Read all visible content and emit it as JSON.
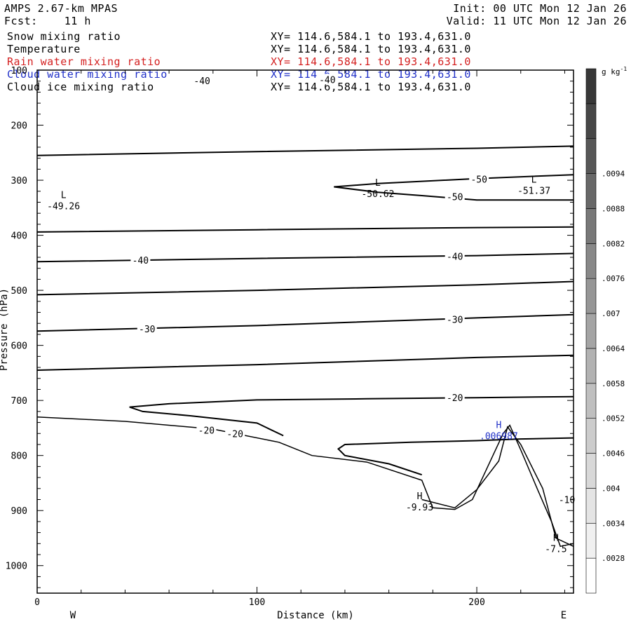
{
  "header": {
    "model": "AMPS 2.67-km MPAS",
    "fcst": "Fcst:    11 h",
    "init": "Init: 00 UTC Mon 12 Jan 26",
    "valid": "Valid: 11 UTC Mon 12 Jan 26"
  },
  "fields": [
    {
      "name": "Snow mixing ratio",
      "xy": "XY= 114.6,584.1 to 193.4,631.0",
      "color": "#000000"
    },
    {
      "name": "Temperature",
      "xy": "XY= 114.6,584.1 to 193.4,631.0",
      "color": "#000000"
    },
    {
      "name": "Rain water mixing ratio",
      "xy": "XY= 114.6,584.1 to 193.4,631.0",
      "color": "#d42020"
    },
    {
      "name": "Cloud water mixing ratio",
      "xy": "XY= 114.6,584.1 to 193.4,631.0",
      "color": "#2030c8"
    },
    {
      "name": "Cloud ice mixing ratio",
      "xy": "XY= 114.6,584.1 to 193.4,631.0",
      "color": "#000000"
    }
  ],
  "chart_data": {
    "type": "line",
    "title": "",
    "xlabel": "Distance (km)",
    "ylabel": "Pressure (hPa)",
    "xlim": [
      0,
      244
    ],
    "ylim": [
      1050,
      100
    ],
    "x_ticks": [
      0,
      100,
      200
    ],
    "y_ticks": [
      100,
      200,
      300,
      400,
      500,
      600,
      700,
      800,
      900,
      1000
    ],
    "x_end_labels": {
      "left": "W",
      "right": "E"
    },
    "colorbar": {
      "unit": "g kg",
      "unit_sup": "-1",
      "ticks": [
        ".0028",
        ".0034",
        ".004",
        ".0046",
        ".0052",
        ".0058",
        ".0064",
        ".007",
        ".0076",
        ".0082",
        ".0088",
        ".0094"
      ],
      "shades": [
        "#ffffff",
        "#f0f0f0",
        "#e4e4e4",
        "#d8d8d8",
        "#cccccc",
        "#bfbfbf",
        "#b2b2b2",
        "#a4a4a4",
        "#969696",
        "#888888",
        "#787878",
        "#686868",
        "#575757",
        "#474747",
        "#383838"
      ]
    },
    "temperature_contours": [
      {
        "level": -50,
        "points": [
          [
            0,
            255
          ],
          [
            100,
            248
          ],
          [
            200,
            242
          ],
          [
            244,
            238
          ]
        ]
      },
      {
        "level": -40,
        "points": [
          [
            0,
            394
          ],
          [
            100,
            390
          ],
          [
            200,
            386
          ],
          [
            244,
            385
          ]
        ]
      },
      {
        "level": -40,
        "points": [
          [
            0,
            448
          ],
          [
            100,
            442
          ],
          [
            200,
            437
          ],
          [
            244,
            433
          ]
        ]
      },
      {
        "level": -30,
        "points": [
          [
            0,
            508
          ],
          [
            100,
            500
          ],
          [
            200,
            490
          ],
          [
            244,
            484
          ]
        ]
      },
      {
        "level": -30,
        "points": [
          [
            0,
            574
          ],
          [
            100,
            564
          ],
          [
            200,
            550
          ],
          [
            244,
            544
          ]
        ]
      },
      {
        "level": -20,
        "points": [
          [
            0,
            645
          ],
          [
            100,
            635
          ],
          [
            200,
            622
          ],
          [
            244,
            618
          ]
        ]
      },
      {
        "level": -50,
        "points": [
          [
            135,
            312
          ],
          [
            155,
            306
          ],
          [
            175,
            302
          ],
          [
            200,
            297
          ],
          [
            244,
            290
          ]
        ]
      },
      {
        "level": -50,
        "points": [
          [
            135,
            312
          ],
          [
            155,
            322
          ],
          [
            175,
            328
          ],
          [
            200,
            336
          ],
          [
            244,
            336
          ]
        ]
      },
      {
        "level": -20,
        "points": [
          [
            244,
            693
          ],
          [
            200,
            695
          ],
          [
            150,
            697
          ],
          [
            100,
            699
          ],
          [
            60,
            706
          ],
          [
            42,
            712
          ],
          [
            48,
            720
          ],
          [
            70,
            728
          ],
          [
            100,
            741
          ],
          [
            112,
            764
          ]
        ]
      },
      {
        "level": -20,
        "points": [
          [
            244,
            768
          ],
          [
            220,
            770
          ],
          [
            200,
            773
          ],
          [
            170,
            776
          ],
          [
            140,
            780
          ],
          [
            137,
            788
          ],
          [
            140,
            800
          ],
          [
            160,
            815
          ],
          [
            175,
            835
          ]
        ]
      }
    ],
    "cloud_water_contours": [
      {
        "level": 0.006987,
        "points": [
          [
            175,
            880
          ],
          [
            190,
            895
          ],
          [
            200,
            862
          ],
          [
            210,
            810
          ],
          [
            214,
            748
          ],
          [
            220,
            780
          ],
          [
            230,
            860
          ],
          [
            236,
            950
          ],
          [
            244,
            965
          ]
        ]
      }
    ],
    "terrain": [
      [
        0,
        730
      ],
      [
        40,
        738
      ],
      [
        80,
        752
      ],
      [
        110,
        776
      ],
      [
        125,
        800
      ],
      [
        150,
        812
      ],
      [
        175,
        845
      ],
      [
        180,
        895
      ],
      [
        190,
        898
      ],
      [
        198,
        880
      ],
      [
        205,
        820
      ],
      [
        212,
        760
      ],
      [
        215,
        745
      ],
      [
        220,
        790
      ],
      [
        228,
        865
      ],
      [
        234,
        920
      ],
      [
        238,
        965
      ],
      [
        244,
        960
      ]
    ],
    "contour_labels": [
      {
        "text": "-40",
        "x": 75,
        "y": 119
      },
      {
        "text": "-40",
        "x": 132,
        "y": 117
      },
      {
        "text": "-50",
        "x": 201,
        "y": 298
      },
      {
        "text": "-50",
        "x": 190,
        "y": 330
      },
      {
        "text": "-40",
        "x": 47,
        "y": 445
      },
      {
        "text": "-40",
        "x": 190,
        "y": 438
      },
      {
        "text": "-30",
        "x": 50,
        "y": 570
      },
      {
        "text": "-30",
        "x": 190,
        "y": 553
      },
      {
        "text": "-20",
        "x": 190,
        "y": 695
      },
      {
        "text": "-20",
        "x": 77,
        "y": 754
      },
      {
        "text": "-20",
        "x": 90,
        "y": 760
      },
      {
        "text": "-10",
        "x": 241,
        "y": 880
      }
    ],
    "extrema": [
      {
        "kind": "L",
        "value": "-49.26",
        "x": 12,
        "y": 345,
        "color": "#000000"
      },
      {
        "kind": "L",
        "value": "-50.62",
        "x": 155,
        "y": 323,
        "color": "#000000"
      },
      {
        "kind": "L",
        "value": "-51.37",
        "x": 226,
        "y": 317,
        "color": "#000000"
      },
      {
        "kind": "H",
        "value": "-9.93",
        "x": 174,
        "y": 892,
        "color": "#000000"
      },
      {
        "kind": "H",
        "value": ".006987",
        "x": 210,
        "y": 763,
        "color": "#2030c8"
      },
      {
        "kind": "H",
        "value": "-7.5",
        "x": 236,
        "y": 968,
        "color": "#000000"
      }
    ]
  }
}
